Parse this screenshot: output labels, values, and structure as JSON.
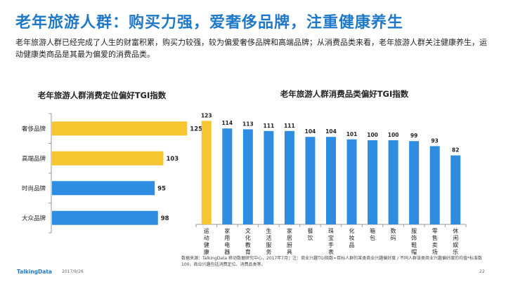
{
  "header": {
    "title": "老年旅游人群：购买力强，爱奢侈品牌，注重健康养生",
    "description": "老年旅游人群已经完成了人生的财富积累，购买力较强，较为偏爱奢侈品牌和高端品牌；从消费品类来看，老年旅游人群关注健康养生，运动健康类商品是其最为偏爱的消费品类。"
  },
  "chart_data": [
    {
      "type": "bar",
      "orientation": "horizontal",
      "title": "老年旅游人群消费定位偏好TGI指数",
      "categories": [
        "奢侈品牌",
        "高端品牌",
        "时尚品牌",
        "大众品牌"
      ],
      "values": [
        125,
        103,
        95,
        98
      ],
      "highlight": [
        "奢侈品牌",
        "高端品牌"
      ],
      "xlim": [
        0,
        130
      ]
    },
    {
      "type": "bar",
      "orientation": "vertical",
      "title": "老年旅游人群消费品类偏好TGI指数",
      "categories": [
        "运动健康",
        "家用电器",
        "文化教育",
        "生活服务",
        "家居厨具",
        "餐饮",
        "珠宝手表",
        "化妆品",
        "箱包",
        "数码",
        "服饰鞋帽",
        "零售卖场",
        "休闲娱乐"
      ],
      "values": [
        123,
        114,
        113,
        111,
        111,
        104,
        104,
        101,
        100,
        100,
        99,
        93,
        82
      ],
      "highlight": [
        "运动健康"
      ],
      "ylim": [
        0,
        130
      ]
    }
  ],
  "colors": {
    "title": "#1f78c8",
    "highlight": "#f6c631",
    "bar": "#2e8de0",
    "axis": "#9a9a9a"
  },
  "footer": {
    "source": "数据来源：TalkingData 移动数据研究中心，2017年7月；注：商业兴趣TGI指数=目标人群的某类商业兴趣偏好度 / 不同人群该类商业兴趣偏好度的均值*标准数100，商业兴趣包括消费定位、消费品类等。",
    "logo": "TalkingData",
    "date": "2017/9/26",
    "page": "22"
  }
}
